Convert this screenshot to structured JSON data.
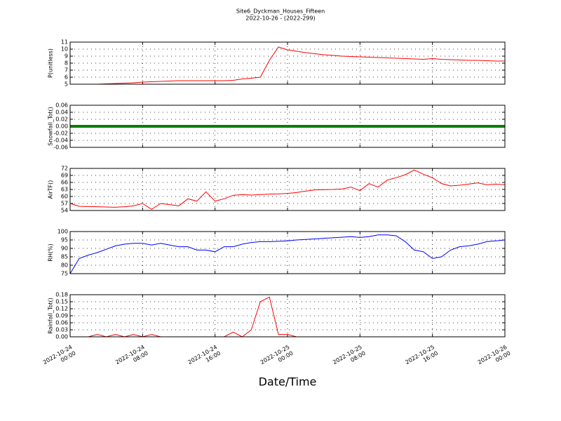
{
  "title": "Site6_Dyckman_Houses_Fifteen",
  "subtitle": "2022-10-26 - (2022-299)",
  "xlabel": "Date/Time",
  "xlim": [
    "2022-10-24 00:00",
    "2022-10-26 00:00"
  ],
  "xticks": [
    {
      "value": "2022-10-24 00:00",
      "label": [
        "2022-10-24",
        "00:00"
      ]
    },
    {
      "value": "2022-10-24 08:00",
      "label": [
        "2022-10-24",
        "08:00"
      ]
    },
    {
      "value": "2022-10-24 16:00",
      "label": [
        "2022-10-24",
        "16:00"
      ]
    },
    {
      "value": "2022-10-25 00:00",
      "label": [
        "2022-10-25",
        "00:00"
      ]
    },
    {
      "value": "2022-10-25 08:00",
      "label": [
        "2022-10-25",
        "08:00"
      ]
    },
    {
      "value": "2022-10-25 16:00",
      "label": [
        "2022-10-25",
        "16:00"
      ]
    },
    {
      "value": "2022-10-26 00:00",
      "label": [
        "2022-10-26",
        "00:00"
      ]
    }
  ],
  "chart_data": [
    {
      "type": "line",
      "ylabel": "P(unitless)",
      "color": "#ff0000",
      "grid": true,
      "ylim": [
        5,
        11
      ],
      "yticks": [
        5,
        6,
        7,
        8,
        9,
        10,
        11
      ],
      "x": [
        "2022-10-24 00:00",
        "2022-10-24 01:00",
        "2022-10-24 02:00",
        "2022-10-24 03:00",
        "2022-10-24 04:00",
        "2022-10-24 05:00",
        "2022-10-24 06:00",
        "2022-10-24 07:00",
        "2022-10-24 08:00",
        "2022-10-24 09:00",
        "2022-10-24 10:00",
        "2022-10-24 11:00",
        "2022-10-24 12:00",
        "2022-10-24 13:00",
        "2022-10-24 14:00",
        "2022-10-24 15:00",
        "2022-10-24 16:00",
        "2022-10-24 17:00",
        "2022-10-24 18:00",
        "2022-10-24 19:00",
        "2022-10-24 20:00",
        "2022-10-24 21:00",
        "2022-10-24 22:00",
        "2022-10-24 23:00",
        "2022-10-25 00:00",
        "2022-10-25 01:00",
        "2022-10-25 02:00",
        "2022-10-25 03:00",
        "2022-10-25 04:00",
        "2022-10-25 05:00",
        "2022-10-25 06:00",
        "2022-10-25 07:00",
        "2022-10-25 08:00",
        "2022-10-25 09:00",
        "2022-10-25 10:00",
        "2022-10-25 11:00",
        "2022-10-25 12:00",
        "2022-10-25 13:00",
        "2022-10-25 14:00",
        "2022-10-25 15:00",
        "2022-10-25 16:00",
        "2022-10-25 17:00",
        "2022-10-25 18:00",
        "2022-10-25 19:00",
        "2022-10-25 20:00",
        "2022-10-25 21:00",
        "2022-10-25 22:00",
        "2022-10-25 23:00",
        "2022-10-26 00:00"
      ],
      "values": [
        5.0,
        5.0,
        5.0,
        5.0,
        5.05,
        5.1,
        5.15,
        5.2,
        5.3,
        5.35,
        5.4,
        5.45,
        5.5,
        5.5,
        5.5,
        5.5,
        5.5,
        5.5,
        5.55,
        5.75,
        5.85,
        6.0,
        8.4,
        10.3,
        9.9,
        9.7,
        9.5,
        9.35,
        9.2,
        9.1,
        9.0,
        8.95,
        8.9,
        8.85,
        8.8,
        8.75,
        8.7,
        8.65,
        8.6,
        8.55,
        8.65,
        8.55,
        8.5,
        8.45,
        8.4,
        8.4,
        8.35,
        8.3,
        8.3
      ]
    },
    {
      "type": "line",
      "ylabel": "Snowfall_Tot()",
      "color": "#008000",
      "grid": true,
      "ylim": [
        -0.06,
        0.06
      ],
      "yticks": [
        -0.06,
        -0.04,
        -0.02,
        {
          "value": 0,
          "label": "0.00"
        },
        0.02,
        0.04,
        0.06
      ],
      "x": [
        "2022-10-24 00:00",
        "2022-10-24 01:00",
        "2022-10-24 02:00",
        "2022-10-24 03:00",
        "2022-10-24 04:00",
        "2022-10-24 05:00",
        "2022-10-24 06:00",
        "2022-10-24 07:00",
        "2022-10-24 08:00",
        "2022-10-24 09:00",
        "2022-10-24 10:00",
        "2022-10-24 11:00",
        "2022-10-24 12:00",
        "2022-10-24 13:00",
        "2022-10-24 14:00",
        "2022-10-24 15:00",
        "2022-10-24 16:00",
        "2022-10-24 17:00",
        "2022-10-24 18:00",
        "2022-10-24 19:00",
        "2022-10-24 20:00",
        "2022-10-24 21:00",
        "2022-10-24 22:00",
        "2022-10-24 23:00",
        "2022-10-25 00:00",
        "2022-10-25 01:00",
        "2022-10-25 02:00",
        "2022-10-25 03:00",
        "2022-10-25 04:00",
        "2022-10-25 05:00",
        "2022-10-25 06:00",
        "2022-10-25 07:00",
        "2022-10-25 08:00",
        "2022-10-25 09:00",
        "2022-10-25 10:00",
        "2022-10-25 11:00",
        "2022-10-25 12:00",
        "2022-10-25 13:00",
        "2022-10-25 14:00",
        "2022-10-25 15:00",
        "2022-10-25 16:00",
        "2022-10-25 17:00",
        "2022-10-25 18:00",
        "2022-10-25 19:00",
        "2022-10-25 20:00",
        "2022-10-25 21:00",
        "2022-10-25 22:00",
        "2022-10-25 23:00",
        "2022-10-26 00:00"
      ],
      "values": [
        0,
        0,
        0,
        0,
        0,
        0,
        0,
        0,
        0,
        0,
        0,
        0,
        0,
        0,
        0,
        0,
        0,
        0,
        0,
        0,
        0,
        0,
        0,
        0,
        0,
        0,
        0,
        0,
        0,
        0,
        0,
        0,
        0,
        0,
        0,
        0,
        0,
        0,
        0,
        0,
        0,
        0,
        0,
        0,
        0,
        0,
        0,
        0,
        0
      ]
    },
    {
      "type": "line",
      "ylabel": "AirTF()",
      "color": "#ff0000",
      "grid": true,
      "ylim": [
        54,
        72
      ],
      "yticks": [
        54,
        57,
        60,
        63,
        66,
        69,
        72
      ],
      "x": [
        "2022-10-24 00:00",
        "2022-10-24 01:00",
        "2022-10-24 02:00",
        "2022-10-24 03:00",
        "2022-10-24 04:00",
        "2022-10-24 05:00",
        "2022-10-24 06:00",
        "2022-10-24 07:00",
        "2022-10-24 08:00",
        "2022-10-24 09:00",
        "2022-10-24 10:00",
        "2022-10-24 11:00",
        "2022-10-24 12:00",
        "2022-10-24 13:00",
        "2022-10-24 14:00",
        "2022-10-24 15:00",
        "2022-10-24 16:00",
        "2022-10-24 17:00",
        "2022-10-24 18:00",
        "2022-10-24 19:00",
        "2022-10-24 20:00",
        "2022-10-24 21:00",
        "2022-10-24 22:00",
        "2022-10-24 23:00",
        "2022-10-25 00:00",
        "2022-10-25 01:00",
        "2022-10-25 02:00",
        "2022-10-25 03:00",
        "2022-10-25 04:00",
        "2022-10-25 05:00",
        "2022-10-25 06:00",
        "2022-10-25 07:00",
        "2022-10-25 08:00",
        "2022-10-25 09:00",
        "2022-10-25 10:00",
        "2022-10-25 11:00",
        "2022-10-25 12:00",
        "2022-10-25 13:00",
        "2022-10-25 14:00",
        "2022-10-25 15:00",
        "2022-10-25 16:00",
        "2022-10-25 17:00",
        "2022-10-25 18:00",
        "2022-10-25 19:00",
        "2022-10-25 20:00",
        "2022-10-25 21:00",
        "2022-10-25 22:00",
        "2022-10-25 23:00",
        "2022-10-26 00:00"
      ],
      "values": [
        57,
        55.8,
        55.7,
        55.6,
        55.5,
        55.4,
        55.6,
        56,
        57,
        54.5,
        57,
        56.5,
        56,
        59,
        58,
        62,
        58,
        59,
        60.5,
        60.8,
        60.6,
        60.8,
        61,
        61.1,
        61.3,
        61.7,
        62.3,
        62.8,
        62.9,
        63,
        63.2,
        64,
        62.5,
        65.5,
        64,
        67,
        68,
        69.3,
        71.3,
        69.5,
        68,
        65.5,
        64.5,
        64.8,
        65.3,
        65.8,
        65,
        65.3,
        65
      ]
    },
    {
      "type": "line",
      "ylabel": "RH(%)",
      "color": "#0000ff",
      "grid": true,
      "ylim": [
        75,
        100
      ],
      "yticks": [
        75,
        80,
        85,
        90,
        95,
        100
      ],
      "x": [
        "2022-10-24 00:00",
        "2022-10-24 01:00",
        "2022-10-24 02:00",
        "2022-10-24 03:00",
        "2022-10-24 04:00",
        "2022-10-24 05:00",
        "2022-10-24 06:00",
        "2022-10-24 07:00",
        "2022-10-24 08:00",
        "2022-10-24 09:00",
        "2022-10-24 10:00",
        "2022-10-24 11:00",
        "2022-10-24 12:00",
        "2022-10-24 13:00",
        "2022-10-24 14:00",
        "2022-10-24 15:00",
        "2022-10-24 16:00",
        "2022-10-24 17:00",
        "2022-10-24 18:00",
        "2022-10-24 19:00",
        "2022-10-24 20:00",
        "2022-10-24 21:00",
        "2022-10-24 22:00",
        "2022-10-24 23:00",
        "2022-10-25 00:00",
        "2022-10-25 01:00",
        "2022-10-25 02:00",
        "2022-10-25 03:00",
        "2022-10-25 04:00",
        "2022-10-25 05:00",
        "2022-10-25 06:00",
        "2022-10-25 07:00",
        "2022-10-25 08:00",
        "2022-10-25 09:00",
        "2022-10-25 10:00",
        "2022-10-25 11:00",
        "2022-10-25 12:00",
        "2022-10-25 13:00",
        "2022-10-25 14:00",
        "2022-10-25 15:00",
        "2022-10-25 16:00",
        "2022-10-25 17:00",
        "2022-10-25 18:00",
        "2022-10-25 19:00",
        "2022-10-25 20:00",
        "2022-10-25 21:00",
        "2022-10-25 22:00",
        "2022-10-25 23:00",
        "2022-10-26 00:00"
      ],
      "values": [
        75,
        84,
        86,
        87.5,
        89.5,
        91.5,
        92.5,
        93,
        93,
        92,
        93,
        92,
        91,
        91,
        89,
        89,
        88,
        91,
        91,
        92.5,
        93.5,
        94,
        94,
        94.2,
        94.5,
        95,
        95.3,
        95.6,
        96,
        96.3,
        96.6,
        97,
        96.5,
        97,
        98,
        98,
        97.5,
        94,
        89,
        88,
        84,
        85,
        89,
        91,
        91.5,
        92.5,
        94,
        94.5,
        95
      ]
    },
    {
      "type": "line",
      "ylabel": "Rainfall_Tot()",
      "color": "#ff0000",
      "grid": true,
      "ylim": [
        0,
        0.18
      ],
      "yticks": [
        {
          "value": 0,
          "label": "0.00"
        },
        0.03,
        0.06,
        0.09,
        0.12,
        0.15,
        0.18
      ],
      "x": [
        "2022-10-24 00:00",
        "2022-10-24 01:00",
        "2022-10-24 02:00",
        "2022-10-24 03:00",
        "2022-10-24 04:00",
        "2022-10-24 05:00",
        "2022-10-24 06:00",
        "2022-10-24 07:00",
        "2022-10-24 08:00",
        "2022-10-24 09:00",
        "2022-10-24 10:00",
        "2022-10-24 11:00",
        "2022-10-24 12:00",
        "2022-10-24 13:00",
        "2022-10-24 14:00",
        "2022-10-24 15:00",
        "2022-10-24 16:00",
        "2022-10-24 17:00",
        "2022-10-24 18:00",
        "2022-10-24 19:00",
        "2022-10-24 20:00",
        "2022-10-24 21:00",
        "2022-10-24 22:00",
        "2022-10-24 23:00",
        "2022-10-25 00:00",
        "2022-10-25 01:00",
        "2022-10-25 02:00",
        "2022-10-25 03:00",
        "2022-10-25 04:00",
        "2022-10-25 05:00",
        "2022-10-25 06:00",
        "2022-10-25 07:00",
        "2022-10-25 08:00",
        "2022-10-25 09:00",
        "2022-10-25 10:00",
        "2022-10-25 11:00",
        "2022-10-25 12:00",
        "2022-10-25 13:00",
        "2022-10-25 14:00",
        "2022-10-25 15:00",
        "2022-10-25 16:00",
        "2022-10-25 17:00",
        "2022-10-25 18:00",
        "2022-10-25 19:00",
        "2022-10-25 20:00",
        "2022-10-25 21:00",
        "2022-10-25 22:00",
        "2022-10-25 23:00",
        "2022-10-26 00:00"
      ],
      "values": [
        0,
        0,
        0,
        0.01,
        0,
        0.01,
        0,
        0.01,
        0,
        0.01,
        0,
        0,
        0,
        0,
        0,
        0,
        0,
        0,
        0.02,
        0,
        0.03,
        0.15,
        0.17,
        0.01,
        0.01,
        0,
        0,
        0,
        0,
        0,
        0,
        0,
        0,
        0,
        0,
        0,
        0,
        0,
        0,
        0,
        0,
        0,
        0,
        0,
        0,
        0,
        0,
        0,
        0
      ]
    }
  ]
}
